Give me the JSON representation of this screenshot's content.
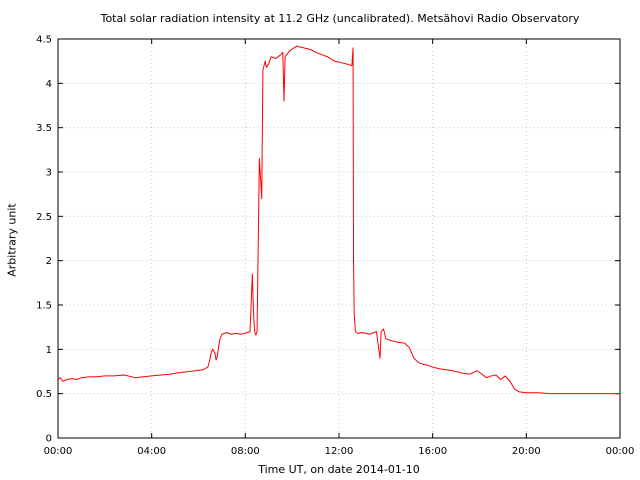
{
  "chart_data": {
    "type": "line",
    "title": "Total solar radiation intensity at 11.2 GHz (uncalibrated). Metsähovi Radio Observatory",
    "xlabel": "Time UT, on date 2014-01-10",
    "ylabel": "Arbitrary unit",
    "xlim": [
      0,
      24
    ],
    "ylim": [
      0,
      4.5
    ],
    "x_ticks": [
      {
        "value": 0,
        "label": "00:00"
      },
      {
        "value": 4,
        "label": "04:00"
      },
      {
        "value": 8,
        "label": "08:00"
      },
      {
        "value": 12,
        "label": "12:00"
      },
      {
        "value": 16,
        "label": "16:00"
      },
      {
        "value": 20,
        "label": "20:00"
      },
      {
        "value": 24,
        "label": "00:00"
      }
    ],
    "y_ticks": [
      {
        "value": 0,
        "label": "0"
      },
      {
        "value": 0.5,
        "label": "0.5"
      },
      {
        "value": 1,
        "label": "1"
      },
      {
        "value": 1.5,
        "label": "1.5"
      },
      {
        "value": 2,
        "label": "2"
      },
      {
        "value": 2.5,
        "label": "2.5"
      },
      {
        "value": 3,
        "label": "3"
      },
      {
        "value": 3.5,
        "label": "3.5"
      },
      {
        "value": 4,
        "label": "4"
      },
      {
        "value": 4.5,
        "label": "4.5"
      }
    ],
    "grid": true,
    "line_color": "#ff0000",
    "x": [
      0,
      0.1,
      0.2,
      0.4,
      0.6,
      0.8,
      1.0,
      1.3,
      1.6,
      2.0,
      2.4,
      2.8,
      3.0,
      3.3,
      3.6,
      4.0,
      4.4,
      4.8,
      5.0,
      5.3,
      5.6,
      5.9,
      6.2,
      6.4,
      6.5,
      6.55,
      6.6,
      6.7,
      6.75,
      6.8,
      6.9,
      7.0,
      7.2,
      7.4,
      7.6,
      7.8,
      8.0,
      8.2,
      8.3,
      8.35,
      8.4,
      8.45,
      8.5,
      8.6,
      8.7,
      8.75,
      8.8,
      8.85,
      8.9,
      9.0,
      9.1,
      9.3,
      9.5,
      9.6,
      9.65,
      9.7,
      9.9,
      10.2,
      10.5,
      10.8,
      11.0,
      11.2,
      11.5,
      11.8,
      12.0,
      12.3,
      12.55,
      12.6,
      12.62,
      12.65,
      12.7,
      12.8,
      13.0,
      13.3,
      13.6,
      13.75,
      13.8,
      13.9,
      14.0,
      14.2,
      14.5,
      14.8,
      15.0,
      15.2,
      15.4,
      15.6,
      15.8,
      16.0,
      16.3,
      16.6,
      17.0,
      17.3,
      17.6,
      17.9,
      18.1,
      18.3,
      18.5,
      18.7,
      18.9,
      19.1,
      19.3,
      19.5,
      19.7,
      20.0,
      20.5,
      21.0,
      22.0,
      23.0,
      24.0
    ],
    "y": [
      0.66,
      0.68,
      0.64,
      0.66,
      0.67,
      0.66,
      0.68,
      0.69,
      0.69,
      0.7,
      0.7,
      0.71,
      0.7,
      0.68,
      0.69,
      0.7,
      0.71,
      0.72,
      0.73,
      0.74,
      0.75,
      0.76,
      0.77,
      0.8,
      0.9,
      0.97,
      1.0,
      0.96,
      0.88,
      0.92,
      1.1,
      1.17,
      1.19,
      1.17,
      1.18,
      1.17,
      1.18,
      1.2,
      1.85,
      1.4,
      1.2,
      1.16,
      1.2,
      3.15,
      2.7,
      4.15,
      4.2,
      4.25,
      4.18,
      4.22,
      4.3,
      4.28,
      4.32,
      4.35,
      3.8,
      4.3,
      4.37,
      4.42,
      4.4,
      4.38,
      4.35,
      4.33,
      4.3,
      4.25,
      4.24,
      4.22,
      4.2,
      4.4,
      2.0,
      1.4,
      1.2,
      1.18,
      1.19,
      1.17,
      1.2,
      0.9,
      1.2,
      1.23,
      1.12,
      1.1,
      1.08,
      1.07,
      1.02,
      0.9,
      0.85,
      0.83,
      0.82,
      0.8,
      0.78,
      0.77,
      0.75,
      0.73,
      0.72,
      0.76,
      0.72,
      0.68,
      0.7,
      0.71,
      0.66,
      0.7,
      0.64,
      0.55,
      0.52,
      0.51,
      0.51,
      0.5,
      0.5,
      0.5,
      0.5
    ]
  }
}
